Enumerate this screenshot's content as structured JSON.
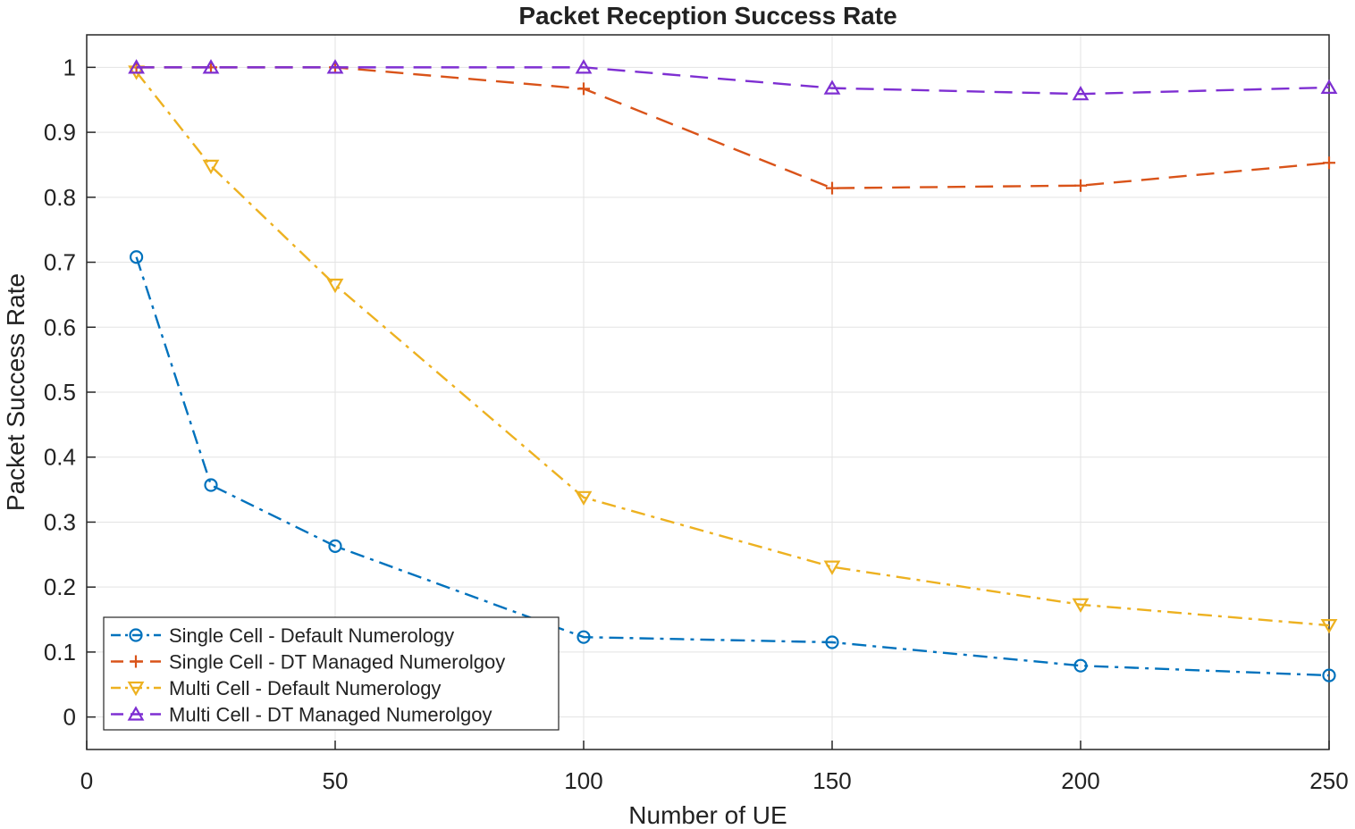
{
  "chart_data": {
    "type": "line",
    "title": "Packet Reception Success Rate",
    "xlabel": "Number of UE",
    "ylabel": "Packet Success Rate",
    "xlim": [
      0,
      250
    ],
    "ylim": [
      -0.05,
      1.05
    ],
    "xticks": [
      0,
      50,
      100,
      150,
      200,
      250
    ],
    "yticks": [
      0,
      0.1,
      0.2,
      0.3,
      0.4,
      0.5,
      0.6,
      0.7,
      0.8,
      0.9,
      1
    ],
    "xtick_labels": [
      "0",
      "50",
      "100",
      "150",
      "200",
      "250"
    ],
    "ytick_labels": [
      "0",
      "0.1",
      "0.2",
      "0.3",
      "0.4",
      "0.5",
      "0.6",
      "0.7",
      "0.8",
      "0.9",
      "1"
    ],
    "grid": true,
    "legend_position": "bottom-left",
    "x": [
      10,
      25,
      50,
      100,
      150,
      200,
      250
    ],
    "series": [
      {
        "name": "Single Cell - Default Numerology",
        "values": [
          0.708,
          0.357,
          0.263,
          0.123,
          0.115,
          0.079,
          0.064
        ],
        "color": "#0072BD",
        "marker": "circle",
        "dash": "dashdot"
      },
      {
        "name": "Single Cell - DT Managed Numerolgoy",
        "values": [
          1.0,
          1.0,
          1.0,
          0.967,
          0.814,
          0.818,
          0.853
        ],
        "color": "#D95319",
        "marker": "plus",
        "dash": "dashed"
      },
      {
        "name": "Multi Cell - Default Numerology",
        "values": [
          0.993,
          0.848,
          0.665,
          0.338,
          0.231,
          0.173,
          0.141
        ],
        "color": "#EDB120",
        "marker": "triangle-down",
        "dash": "dashdot"
      },
      {
        "name": "Multi Cell - DT Managed Numerolgoy",
        "values": [
          1.0,
          1.0,
          1.0,
          1.0,
          0.968,
          0.959,
          0.969
        ],
        "color": "#7E2FD2",
        "marker": "triangle-up",
        "dash": "dashed"
      }
    ]
  }
}
